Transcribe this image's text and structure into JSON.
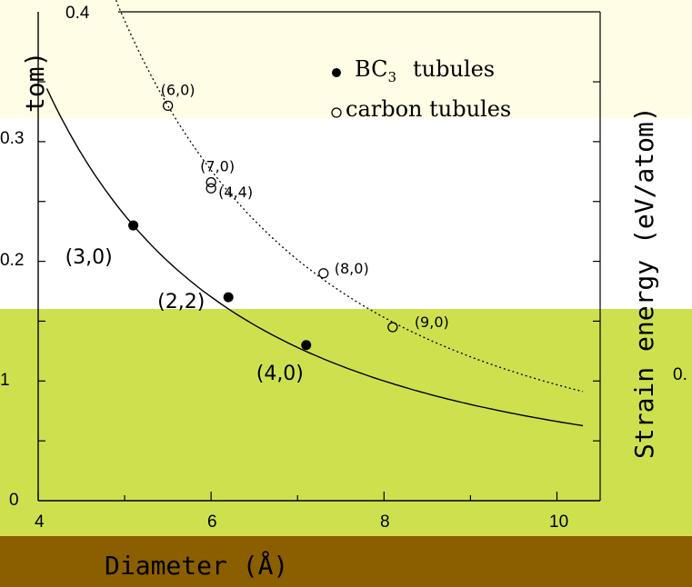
{
  "chart_data": {
    "type": "scatter",
    "xlabel": "Diameter (Å)",
    "ylabel": "Strain energy (eV/atom)",
    "xlim": [
      4,
      10
    ],
    "ylim": [
      0,
      0.4
    ],
    "x_ticks": [
      "4",
      "6",
      "8",
      "10"
    ],
    "y_ticks_top": [
      "0.4",
      "0.3",
      "0.2"
    ],
    "y_ticks_bottom": [
      "1",
      "0"
    ],
    "y_top_partial_label": "tom)",
    "y_right_partial_label": "0.",
    "legend": {
      "position": "top-right",
      "entries": [
        {
          "name": "BC3 tubules",
          "text": "BC",
          "sub": "3",
          "suffix": "tubules",
          "marker": "filled"
        },
        {
          "name": "carbon tubules",
          "text": "carbon tubules",
          "marker": "open"
        }
      ]
    },
    "series": [
      {
        "name": "BC3 tubules",
        "marker": "filled",
        "line": "solid",
        "points": [
          {
            "x": 5.1,
            "y": 0.23,
            "label": "(3,0)"
          },
          {
            "x": 6.2,
            "y": 0.17,
            "label": "(2,2)"
          },
          {
            "x": 7.1,
            "y": 0.13,
            "label": "(4,0)"
          }
        ]
      },
      {
        "name": "carbon tubules",
        "marker": "open",
        "line": "dotted",
        "points": [
          {
            "x": 5.5,
            "y": 0.33,
            "label": "(6,0)"
          },
          {
            "x": 6.0,
            "y": 0.266,
            "label": "(7,0)"
          },
          {
            "x": 6.0,
            "y": 0.261,
            "label": "(4,4)"
          },
          {
            "x": 7.3,
            "y": 0.19,
            "label": "(8,0)"
          },
          {
            "x": 8.1,
            "y": 0.145,
            "label": "(9,0)"
          }
        ]
      }
    ]
  },
  "colors": {
    "band_top": "#fffde6",
    "band_middle": "#ffffff",
    "band_lower": "#cfe04f",
    "band_bottom": "#8b5e00",
    "ink": "#000000"
  }
}
